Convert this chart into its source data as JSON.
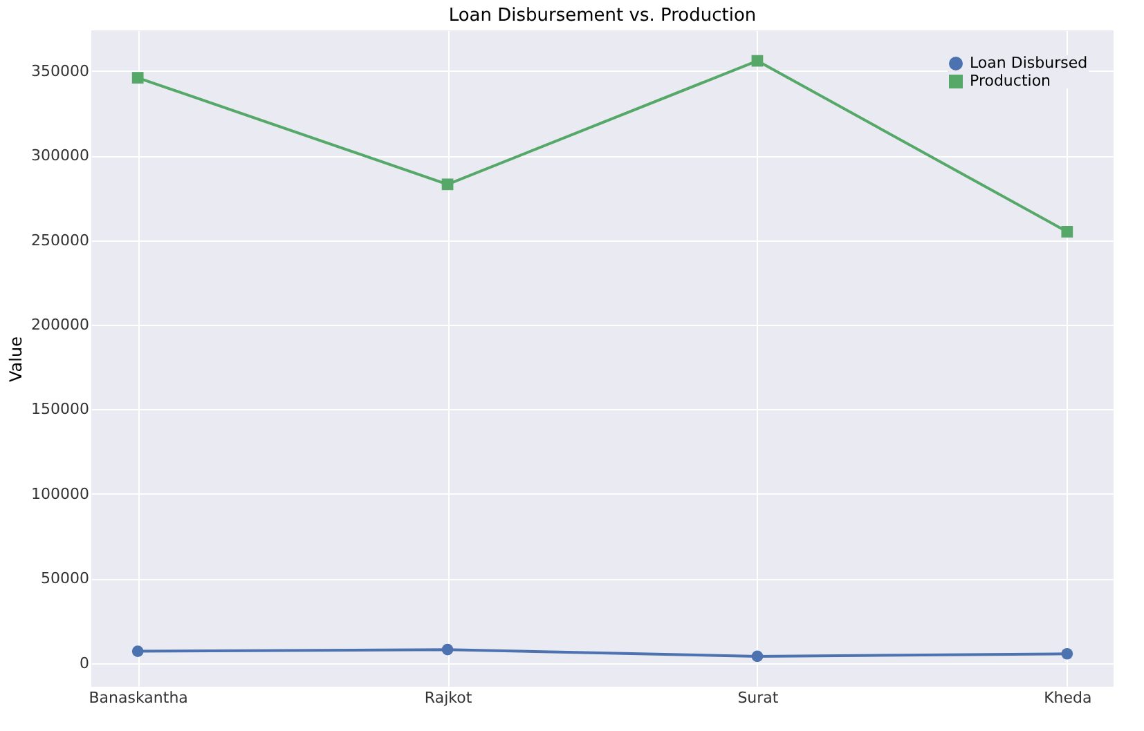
{
  "chart_data": {
    "type": "line",
    "title": "Loan Disbursement vs. Production",
    "ylabel": "Value",
    "categories": [
      "Banaskantha",
      "Rajkot",
      "Surat",
      "Kheda"
    ],
    "series": [
      {
        "name": "Loan Disbursed",
        "color": "#4c72b0",
        "marker": "circle",
        "values": [
          7000,
          8000,
          4000,
          5500
        ]
      },
      {
        "name": "Production",
        "color": "#55a868",
        "marker": "square",
        "values": [
          346000,
          283000,
          356000,
          255000
        ]
      }
    ],
    "ylim": [
      -14000,
      374000
    ],
    "yticks": [
      0,
      50000,
      100000,
      150000,
      200000,
      250000,
      300000,
      350000
    ],
    "grid": true,
    "legend": "top right",
    "line_style": "solid"
  }
}
